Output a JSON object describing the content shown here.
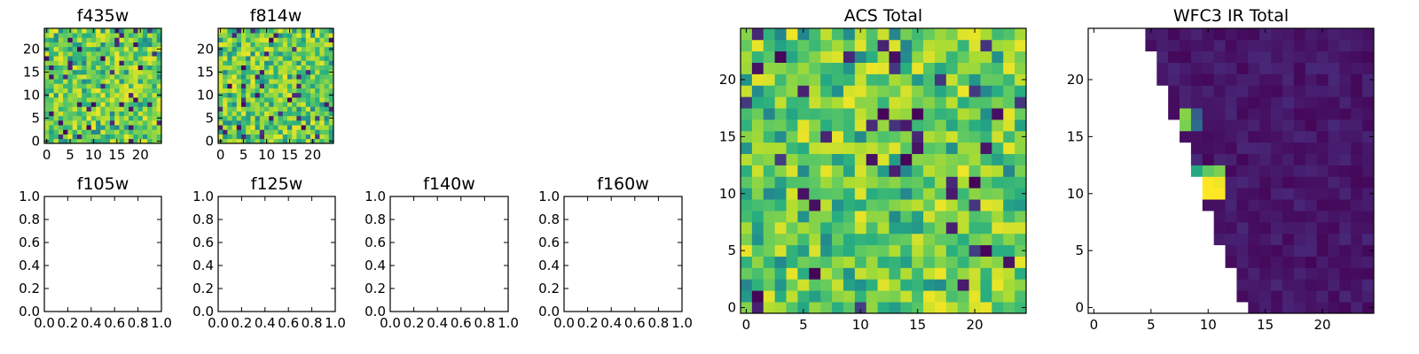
{
  "chart_data": [
    {
      "type": "heatmap",
      "title": "f435w",
      "xlim": [
        -0.5,
        24.5
      ],
      "ylim": [
        -0.5,
        24.5
      ],
      "xticks": [
        0,
        5,
        10,
        15,
        20
      ],
      "yticks": [
        0,
        5,
        10,
        15,
        20
      ],
      "grid": false,
      "colormap": "viridis",
      "value_range": [
        0,
        1
      ],
      "values": "25x25 noisy field: mostly green/yellow-green (values 0.45-0.9), a few scattered dark purple pixels"
    },
    {
      "type": "heatmap",
      "title": "f814w",
      "xlim": [
        -0.5,
        24.5
      ],
      "ylim": [
        -0.5,
        24.5
      ],
      "xticks": [
        0,
        5,
        10,
        15,
        20
      ],
      "yticks": [
        0,
        5,
        10,
        15,
        20
      ],
      "grid": false,
      "colormap": "viridis",
      "value_range": [
        0,
        1
      ],
      "values": "25x25 noisy field: mostly yellow-green/green, a few scattered dark purple pixels"
    },
    {
      "type": "empty",
      "title": "f105w",
      "xlim": [
        0,
        1
      ],
      "ylim": [
        0,
        1
      ],
      "xticks": [
        0.0,
        0.2,
        0.4,
        0.6,
        0.8,
        1.0
      ],
      "yticks": [
        0.0,
        0.2,
        0.4,
        0.6,
        0.8,
        1.0
      ]
    },
    {
      "type": "empty",
      "title": "f125w",
      "xlim": [
        0,
        1
      ],
      "ylim": [
        0,
        1
      ],
      "xticks": [
        0.0,
        0.2,
        0.4,
        0.6,
        0.8,
        1.0
      ],
      "yticks": [
        0.0,
        0.2,
        0.4,
        0.6,
        0.8,
        1.0
      ]
    },
    {
      "type": "empty",
      "title": "f140w",
      "xlim": [
        0,
        1
      ],
      "ylim": [
        0,
        1
      ],
      "xticks": [
        0.0,
        0.2,
        0.4,
        0.6,
        0.8,
        1.0
      ],
      "yticks": [
        0.0,
        0.2,
        0.4,
        0.6,
        0.8,
        1.0
      ]
    },
    {
      "type": "empty",
      "title": "f160w",
      "xlim": [
        0,
        1
      ],
      "ylim": [
        0,
        1
      ],
      "xticks": [
        0.0,
        0.2,
        0.4,
        0.6,
        0.8,
        1.0
      ],
      "yticks": [
        0.0,
        0.2,
        0.4,
        0.6,
        0.8,
        1.0
      ]
    },
    {
      "type": "heatmap",
      "title": "ACS Total",
      "xlim": [
        -0.5,
        24.5
      ],
      "ylim": [
        -0.5,
        24.5
      ],
      "xticks": [
        0,
        5,
        10,
        15,
        20
      ],
      "yticks": [
        0,
        5,
        10,
        15,
        20
      ],
      "grid": false,
      "colormap": "viridis",
      "value_range": [
        0,
        1
      ],
      "values": "25x25 noisy field: mostly green/yellow-green, scattered dark purple pixels near (3,22), (12,17), (15,17), (14,13), (1,1), (6,3)"
    },
    {
      "type": "heatmap",
      "title": "WFC3 IR Total",
      "xlim": [
        -0.5,
        24.5
      ],
      "ylim": [
        -0.5,
        24.5
      ],
      "xticks": [
        0,
        5,
        10,
        15,
        20
      ],
      "yticks": [
        0,
        5,
        10,
        15,
        20
      ],
      "grid": false,
      "colormap": "viridis",
      "value_range": [
        0,
        1
      ],
      "values": "25x25 field: white (no data) wedge on the left, data begins near x=13 at y=0 and x=5 at y=24; data mostly dark purple, bright yellow/green patch near x=9-11, y=10-13 and x=8, y=15-17"
    }
  ]
}
